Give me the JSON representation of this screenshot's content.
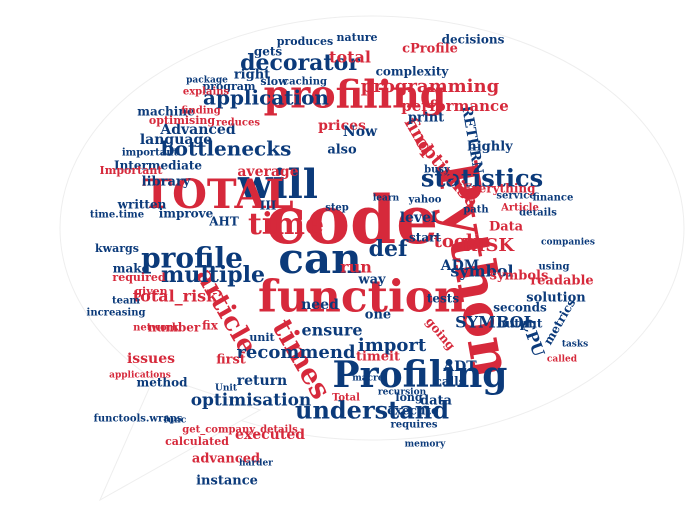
{
  "colors": {
    "red": "#d6293b",
    "blue": "#0b3a7a",
    "background": "#ffffff"
  },
  "words": [
    {
      "text": "code",
      "color": "red"
    },
    {
      "text": "Python",
      "color": "red"
    },
    {
      "text": "can",
      "color": "blue"
    },
    {
      "text": "will",
      "color": "blue"
    },
    {
      "text": "profiling",
      "color": "red"
    },
    {
      "text": "function",
      "color": "red"
    },
    {
      "text": "Profiling",
      "color": "blue"
    },
    {
      "text": "TOTAL",
      "color": "red"
    },
    {
      "text": "time",
      "color": "red"
    },
    {
      "text": "profile",
      "color": "blue"
    },
    {
      "text": "times",
      "color": "red"
    },
    {
      "text": "article",
      "color": "red"
    },
    {
      "text": "statistics",
      "color": "blue"
    },
    {
      "text": "bottlenecks",
      "color": "blue"
    },
    {
      "text": "decorator",
      "color": "blue"
    },
    {
      "text": "application",
      "color": "blue"
    },
    {
      "text": "understand",
      "color": "blue"
    },
    {
      "text": "multiple",
      "color": "blue"
    },
    {
      "text": "def",
      "color": "blue"
    },
    {
      "text": "run",
      "color": "red"
    },
    {
      "text": "took",
      "color": "red"
    },
    {
      "text": "import",
      "color": "blue"
    },
    {
      "text": "ensure",
      "color": "blue"
    },
    {
      "text": "recommend",
      "color": "blue"
    },
    {
      "text": "optimisation",
      "color": "blue"
    },
    {
      "text": "executed",
      "color": "red"
    },
    {
      "text": "return",
      "color": "blue"
    },
    {
      "text": "RETURN",
      "color": "blue"
    },
    {
      "text": "find",
      "color": "red"
    },
    {
      "text": "optimise",
      "color": "red"
    },
    {
      "text": "programming",
      "color": "red"
    },
    {
      "text": "performance",
      "color": "red"
    },
    {
      "text": "symbol",
      "color": "blue"
    },
    {
      "text": "SYMBOL",
      "color": "blue"
    },
    {
      "text": "RISK",
      "color": "red"
    },
    {
      "text": "ADM",
      "color": "blue"
    },
    {
      "text": "ADT",
      "color": "blue"
    },
    {
      "text": "AHT",
      "color": "blue"
    },
    {
      "text": "CPU",
      "color": "blue"
    },
    {
      "text": "total_risk",
      "color": "red"
    },
    {
      "text": "issues",
      "color": "red"
    },
    {
      "text": "number",
      "color": "red"
    },
    {
      "text": "need",
      "color": "blue"
    },
    {
      "text": "one",
      "color": "blue"
    },
    {
      "text": "way",
      "color": "blue"
    },
    {
      "text": "level",
      "color": "blue"
    },
    {
      "text": "average",
      "color": "red"
    },
    {
      "text": "Advanced",
      "color": "blue"
    },
    {
      "text": "advanced",
      "color": "red"
    },
    {
      "text": "instance",
      "color": "blue"
    },
    {
      "text": "method",
      "color": "blue"
    },
    {
      "text": "make",
      "color": "blue"
    },
    {
      "text": "kwargs",
      "color": "blue"
    },
    {
      "text": "required",
      "color": "red"
    },
    {
      "text": "written",
      "color": "blue"
    },
    {
      "text": "team",
      "color": "blue"
    },
    {
      "text": "given",
      "color": "red"
    },
    {
      "text": "improve",
      "color": "blue"
    },
    {
      "text": "library",
      "color": "blue"
    },
    {
      "text": "Intermediate",
      "color": "blue"
    },
    {
      "text": "important",
      "color": "blue"
    },
    {
      "text": "language",
      "color": "blue"
    },
    {
      "text": "machine",
      "color": "blue"
    },
    {
      "text": "Important",
      "color": "red"
    },
    {
      "text": "time.time",
      "color": "blue"
    },
    {
      "text": "print",
      "color": "blue"
    },
    {
      "text": "prices",
      "color": "red"
    },
    {
      "text": "also",
      "color": "blue"
    },
    {
      "text": "Now",
      "color": "blue"
    },
    {
      "text": "right",
      "color": "blue"
    },
    {
      "text": "gets",
      "color": "blue"
    },
    {
      "text": "total",
      "color": "red"
    },
    {
      "text": "complexity",
      "color": "blue"
    },
    {
      "text": "highly",
      "color": "blue"
    },
    {
      "text": "readable",
      "color": "red"
    },
    {
      "text": "solution",
      "color": "blue"
    },
    {
      "text": "symbols",
      "color": "red"
    },
    {
      "text": "output",
      "color": "blue"
    },
    {
      "text": "seconds",
      "color": "blue"
    },
    {
      "text": "metrics",
      "color": "blue"
    },
    {
      "text": "calls",
      "color": "blue"
    },
    {
      "text": "execute",
      "color": "blue"
    },
    {
      "text": "data",
      "color": "blue"
    },
    {
      "text": "Data",
      "color": "red"
    },
    {
      "text": "going",
      "color": "red"
    },
    {
      "text": "long",
      "color": "blue"
    },
    {
      "text": "tests",
      "color": "blue"
    },
    {
      "text": "start",
      "color": "blue"
    },
    {
      "text": "timeit",
      "color": "red"
    },
    {
      "text": "first",
      "color": "red"
    },
    {
      "text": "fix",
      "color": "red"
    },
    {
      "text": "unit",
      "color": "blue"
    },
    {
      "text": "calculated",
      "color": "red"
    },
    {
      "text": "functools.wraps",
      "color": "blue"
    },
    {
      "text": "func",
      "color": "blue"
    },
    {
      "text": "get_company_details",
      "color": "red"
    },
    {
      "text": "harder",
      "color": "blue"
    },
    {
      "text": "requires",
      "color": "blue"
    },
    {
      "text": "Total",
      "color": "red"
    },
    {
      "text": "III",
      "color": "blue"
    },
    {
      "text": "cProfile",
      "color": "red"
    },
    {
      "text": "produces",
      "color": "blue"
    },
    {
      "text": "decisions",
      "color": "blue"
    },
    {
      "text": "nature",
      "color": "blue"
    },
    {
      "text": "caching",
      "color": "blue"
    },
    {
      "text": "slow",
      "color": "blue"
    },
    {
      "text": "program",
      "color": "blue"
    },
    {
      "text": "explains",
      "color": "red"
    },
    {
      "text": "finding",
      "color": "red"
    },
    {
      "text": "package",
      "color": "blue"
    },
    {
      "text": "optimising",
      "color": "red"
    },
    {
      "text": "reduces",
      "color": "red"
    },
    {
      "text": "path",
      "color": "blue"
    },
    {
      "text": "service",
      "color": "blue"
    },
    {
      "text": "finance",
      "color": "blue"
    },
    {
      "text": "details",
      "color": "blue"
    },
    {
      "text": "recursion",
      "color": "blue"
    },
    {
      "text": "macro",
      "color": "blue"
    },
    {
      "text": "memory",
      "color": "blue"
    },
    {
      "text": "network",
      "color": "red"
    },
    {
      "text": "applications",
      "color": "red"
    },
    {
      "text": "increasing",
      "color": "blue"
    },
    {
      "text": "using",
      "color": "blue"
    },
    {
      "text": "Article",
      "color": "red"
    },
    {
      "text": "companies",
      "color": "blue"
    },
    {
      "text": "busy",
      "color": "blue"
    },
    {
      "text": "yahoo",
      "color": "blue"
    },
    {
      "text": "learn",
      "color": "blue"
    },
    {
      "text": "step",
      "color": "blue"
    },
    {
      "text": "Unit",
      "color": "blue"
    },
    {
      "text": "tasks",
      "color": "blue"
    },
    {
      "text": "called",
      "color": "red"
    },
    {
      "text": "Everything",
      "color": "red"
    }
  ]
}
